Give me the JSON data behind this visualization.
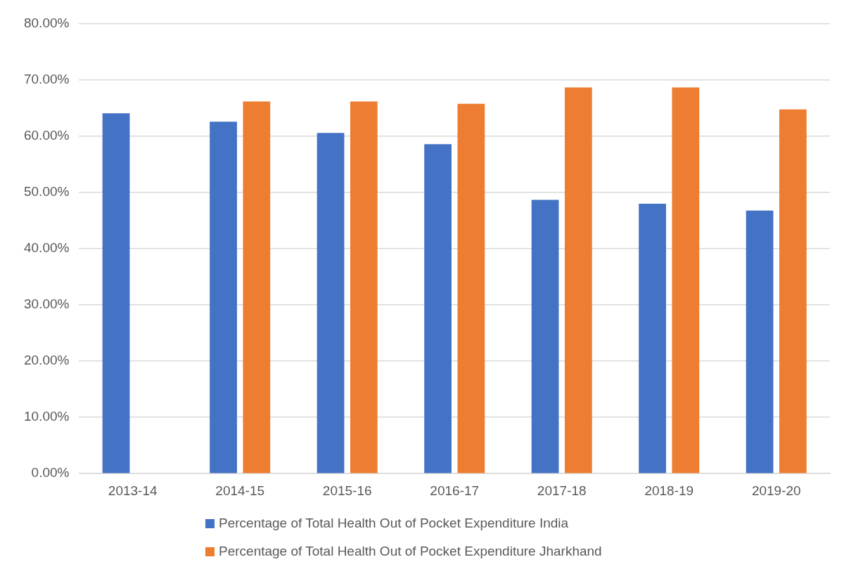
{
  "chart_data": {
    "type": "bar",
    "categories": [
      "2013-14",
      "2014-15",
      "2015-16",
      "2016-17",
      "2017-18",
      "2018-19",
      "2019-20"
    ],
    "series": [
      {
        "name": "Percentage of Total Health Out of Pocket Expenditure India",
        "color": "#4472c4",
        "values": [
          64.1,
          62.6,
          60.6,
          58.6,
          48.7,
          48.0,
          46.8
        ]
      },
      {
        "name": "Percentage of Total Health Out of Pocket Expenditure Jharkhand",
        "color": "#ed7d31",
        "values": [
          null,
          66.2,
          66.2,
          65.8,
          68.7,
          68.7,
          64.8
        ]
      }
    ],
    "ylim": [
      0,
      80
    ],
    "yticks": [
      {
        "value": 0,
        "label": "0.00%"
      },
      {
        "value": 10,
        "label": "10.00%"
      },
      {
        "value": 20,
        "label": "20.00%"
      },
      {
        "value": 30,
        "label": "30.00%"
      },
      {
        "value": 40,
        "label": "40.00%"
      },
      {
        "value": 50,
        "label": "50.00%"
      },
      {
        "value": 60,
        "label": "60.00%"
      },
      {
        "value": 70,
        "label": "70.00%"
      },
      {
        "value": 80,
        "label": "80.00%"
      }
    ],
    "grid": "y",
    "legend": "bottom"
  }
}
